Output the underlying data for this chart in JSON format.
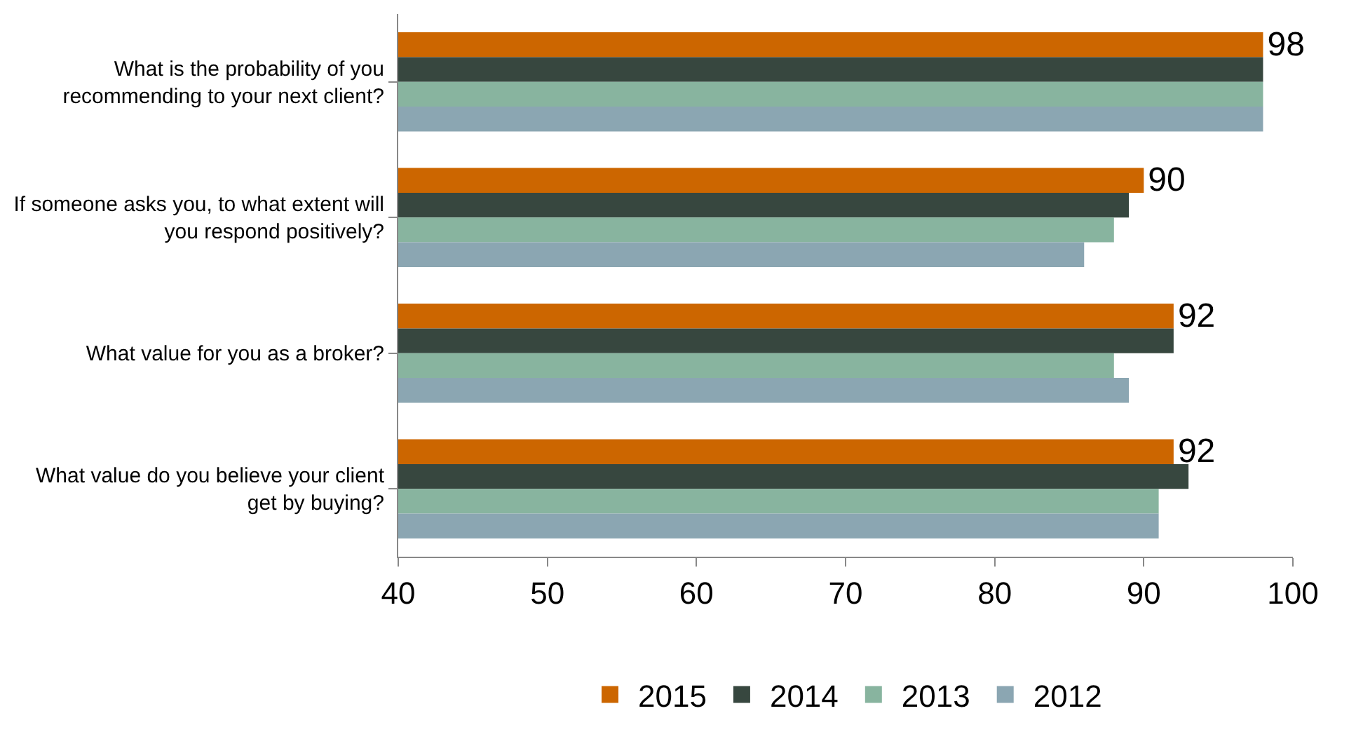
{
  "chart_data": {
    "type": "bar",
    "orientation": "horizontal",
    "categories": [
      "What is the probability of you recommending to your next client?",
      "If someone asks you, to what extent will you respond positively?",
      "What value for you as a broker?",
      "What value do you believe your client get by buying?"
    ],
    "series": [
      {
        "name": "2015",
        "color": "#cc6600",
        "values": [
          98,
          90,
          92,
          92
        ],
        "value_labels": [
          "98",
          "90",
          "92",
          "92"
        ]
      },
      {
        "name": "2014",
        "color": "#37473f",
        "values": [
          98,
          89,
          92,
          93
        ]
      },
      {
        "name": "2013",
        "color": "#88b49f",
        "values": [
          98,
          88,
          88,
          91
        ]
      },
      {
        "name": "2012",
        "color": "#8ba6b2",
        "values": [
          98,
          86,
          89,
          91
        ]
      }
    ],
    "xlim": [
      40,
      100
    ],
    "xticks": [
      40,
      50,
      60,
      70,
      80,
      90,
      100
    ],
    "legend": "bottom"
  }
}
